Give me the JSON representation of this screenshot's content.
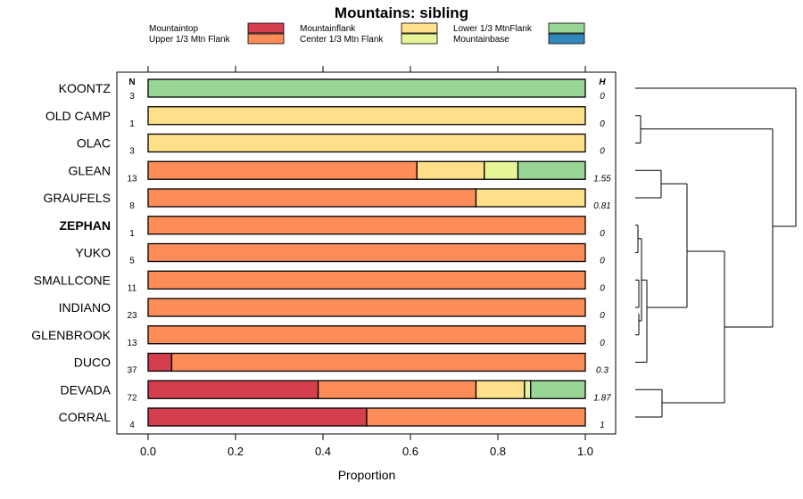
{
  "chart_data": {
    "type": "bar",
    "orientation": "horizontal",
    "stacked": true,
    "title": "Mountains: sibling",
    "xlabel": "Proportion",
    "ylabel": "",
    "xlim": [
      0,
      1
    ],
    "xticks": [
      "0.0",
      "0.2",
      "0.4",
      "0.6",
      "0.8",
      "1.0"
    ],
    "n_header": "N",
    "h_header": "H",
    "legend_position": "top",
    "legend": [
      {
        "name": "Mountaintop",
        "color": "#d53e4f"
      },
      {
        "name": "Upper 1/3 Mtn Flank",
        "color": "#fc8d59"
      },
      {
        "name": "Mountainflank",
        "color": "#fee08b"
      },
      {
        "name": "Center 1/3 Mtn Flank",
        "color": "#e6f598"
      },
      {
        "name": "Lower 1/3 MtnFlank",
        "color": "#99d594"
      },
      {
        "name": "Mountainbase",
        "color": "#3288bd"
      }
    ],
    "rows": [
      {
        "label": "KOONTZ",
        "bold": false,
        "n": "3",
        "h": "0",
        "segments": [
          {
            "cat": "Lower 1/3 MtnFlank",
            "value": 1.0
          }
        ]
      },
      {
        "label": "OLD CAMP",
        "bold": false,
        "n": "1",
        "h": "0",
        "segments": [
          {
            "cat": "Mountainflank",
            "value": 1.0
          }
        ]
      },
      {
        "label": "OLAC",
        "bold": false,
        "n": "3",
        "h": "0",
        "segments": [
          {
            "cat": "Mountainflank",
            "value": 1.0
          }
        ]
      },
      {
        "label": "GLEAN",
        "bold": false,
        "n": "13",
        "h": "1.55",
        "segments": [
          {
            "cat": "Upper 1/3 Mtn Flank",
            "value": 0.615
          },
          {
            "cat": "Mountainflank",
            "value": 0.154
          },
          {
            "cat": "Center 1/3 Mtn Flank",
            "value": 0.077
          },
          {
            "cat": "Lower 1/3 MtnFlank",
            "value": 0.154
          }
        ]
      },
      {
        "label": "GRAUFELS",
        "bold": false,
        "n": "8",
        "h": "0.81",
        "segments": [
          {
            "cat": "Upper 1/3 Mtn Flank",
            "value": 0.75
          },
          {
            "cat": "Mountainflank",
            "value": 0.25
          }
        ]
      },
      {
        "label": "ZEPHAN",
        "bold": true,
        "n": "1",
        "h": "0",
        "segments": [
          {
            "cat": "Upper 1/3 Mtn Flank",
            "value": 1.0
          }
        ]
      },
      {
        "label": "YUKO",
        "bold": false,
        "n": "5",
        "h": "0",
        "segments": [
          {
            "cat": "Upper 1/3 Mtn Flank",
            "value": 1.0
          }
        ]
      },
      {
        "label": "SMALLCONE",
        "bold": false,
        "n": "11",
        "h": "0",
        "segments": [
          {
            "cat": "Upper 1/3 Mtn Flank",
            "value": 1.0
          }
        ]
      },
      {
        "label": "INDIANO",
        "bold": false,
        "n": "23",
        "h": "0",
        "segments": [
          {
            "cat": "Upper 1/3 Mtn Flank",
            "value": 1.0
          }
        ]
      },
      {
        "label": "GLENBROOK",
        "bold": false,
        "n": "13",
        "h": "0",
        "segments": [
          {
            "cat": "Upper 1/3 Mtn Flank",
            "value": 1.0
          }
        ]
      },
      {
        "label": "DUCO",
        "bold": false,
        "n": "37",
        "h": "0.3",
        "segments": [
          {
            "cat": "Mountaintop",
            "value": 0.054
          },
          {
            "cat": "Upper 1/3 Mtn Flank",
            "value": 0.946
          }
        ]
      },
      {
        "label": "DEVADA",
        "bold": false,
        "n": "72",
        "h": "1.87",
        "segments": [
          {
            "cat": "Mountaintop",
            "value": 0.389
          },
          {
            "cat": "Upper 1/3 Mtn Flank",
            "value": 0.361
          },
          {
            "cat": "Mountainflank",
            "value": 0.111
          },
          {
            "cat": "Center 1/3 Mtn Flank",
            "value": 0.014
          },
          {
            "cat": "Lower 1/3 MtnFlank",
            "value": 0.125
          }
        ]
      },
      {
        "label": "CORRAL",
        "bold": false,
        "n": "4",
        "h": "1",
        "segments": [
          {
            "cat": "Mountaintop",
            "value": 0.5
          },
          {
            "cat": "Upper 1/3 Mtn Flank",
            "value": 0.5
          }
        ]
      }
    ]
  }
}
